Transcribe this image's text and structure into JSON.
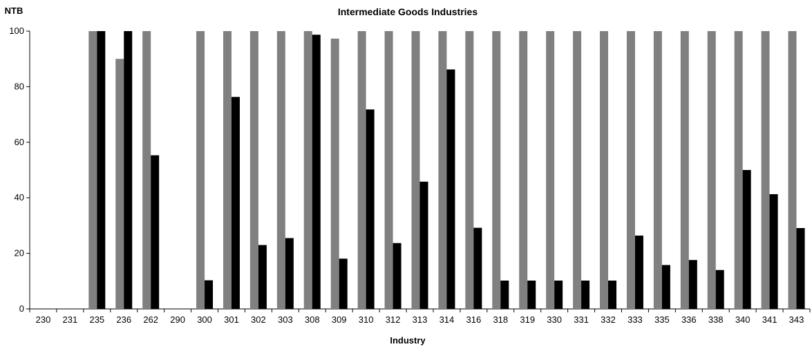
{
  "chart_data": {
    "type": "bar",
    "title": "Intermediate Goods Industries",
    "xlabel": "Industry",
    "ylabel": "NTB",
    "ylim": [
      0,
      100
    ],
    "yticks": [
      0,
      20,
      40,
      60,
      80,
      100
    ],
    "grid": false,
    "legend": "none",
    "categories": [
      "230",
      "231",
      "235",
      "236",
      "262",
      "290",
      "300",
      "301",
      "302",
      "303",
      "308",
      "309",
      "310",
      "312",
      "313",
      "314",
      "316",
      "318",
      "319",
      "330",
      "331",
      "332",
      "333",
      "335",
      "336",
      "338",
      "340",
      "341",
      "343"
    ],
    "series": [
      {
        "color": "#808080",
        "values": [
          0,
          0,
          100,
          90,
          100,
          0,
          100,
          100,
          100,
          100,
          100,
          97.3,
          100,
          100,
          100,
          100,
          100,
          100,
          100,
          100,
          100,
          100,
          100,
          100,
          100,
          100,
          100,
          100,
          100
        ]
      },
      {
        "color": "#000000",
        "values": [
          0,
          0,
          100,
          100,
          55.3,
          0,
          10.3,
          76.3,
          23,
          25.5,
          98.7,
          18.1,
          71.8,
          23.7,
          45.8,
          86.2,
          29.2,
          10.2,
          10.2,
          10.2,
          10.2,
          10.2,
          26.4,
          15.8,
          17.6,
          14,
          50,
          41.3,
          29.1
        ]
      }
    ]
  }
}
